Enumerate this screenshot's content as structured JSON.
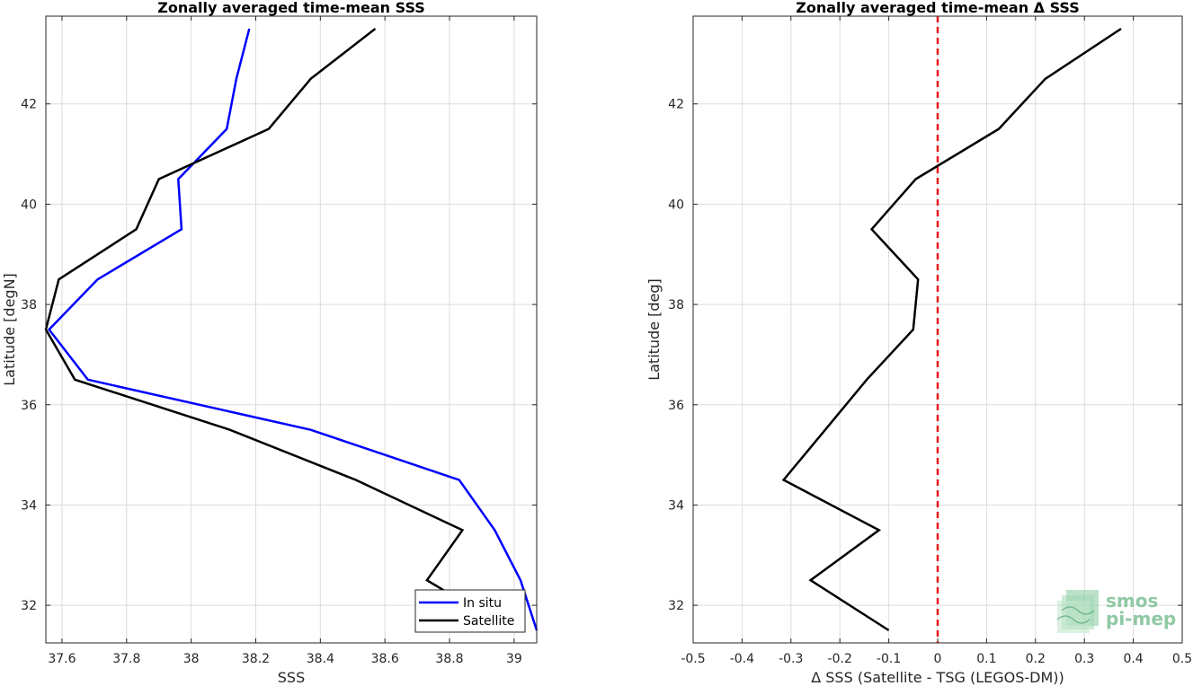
{
  "chart_data": [
    {
      "type": "line",
      "title": "Zonally averaged time-mean SSS",
      "xlabel": "SSS",
      "ylabel": "Latitude [degN]",
      "xlim": [
        37.55,
        39.07
      ],
      "ylim": [
        31.25,
        43.75
      ],
      "xticks": [
        37.6,
        37.8,
        38,
        38.2,
        38.4,
        38.6,
        38.8,
        39
      ],
      "xtick_labels": [
        "37.6",
        "37.8",
        "38",
        "38.2",
        "38.4",
        "38.6",
        "38.8",
        "39"
      ],
      "yticks": [
        32,
        34,
        36,
        38,
        40,
        42
      ],
      "ytick_labels": [
        "32",
        "34",
        "36",
        "38",
        "40",
        "42"
      ],
      "grid": true,
      "legend": "bottom-right",
      "series": [
        {
          "name": "In situ",
          "color": "#0000ff",
          "points": [
            {
              "x": 39.07,
              "y": 31.5
            },
            {
              "x": 39.02,
              "y": 32.5
            },
            {
              "x": 38.94,
              "y": 33.5
            },
            {
              "x": 38.83,
              "y": 34.5
            },
            {
              "x": 38.37,
              "y": 35.5
            },
            {
              "x": 37.68,
              "y": 36.5
            },
            {
              "x": 37.56,
              "y": 37.5
            },
            {
              "x": 37.71,
              "y": 38.5
            },
            {
              "x": 37.97,
              "y": 39.5
            },
            {
              "x": 37.96,
              "y": 40.5
            },
            {
              "x": 38.11,
              "y": 41.5
            },
            {
              "x": 38.14,
              "y": 42.5
            },
            {
              "x": 38.18,
              "y": 43.5
            }
          ]
        },
        {
          "name": "Satellite",
          "color": "#000000",
          "points": [
            {
              "x": 38.99,
              "y": 31.5
            },
            {
              "x": 38.73,
              "y": 32.5
            },
            {
              "x": 38.84,
              "y": 33.5
            },
            {
              "x": 38.51,
              "y": 34.5
            },
            {
              "x": 38.12,
              "y": 35.5
            },
            {
              "x": 37.64,
              "y": 36.5
            },
            {
              "x": 37.55,
              "y": 37.5
            },
            {
              "x": 37.59,
              "y": 38.5
            },
            {
              "x": 37.83,
              "y": 39.5
            },
            {
              "x": 37.9,
              "y": 40.5
            },
            {
              "x": 38.24,
              "y": 41.5
            },
            {
              "x": 38.37,
              "y": 42.5
            },
            {
              "x": 38.57,
              "y": 43.5
            }
          ]
        }
      ]
    },
    {
      "type": "line",
      "title": "Zonally averaged time-mean Δ SSS",
      "xlabel": "Δ SSS (Satellite - TSG (LEGOS-DM))",
      "ylabel": "Latitude [deg]",
      "xlim": [
        -0.5,
        0.5
      ],
      "ylim": [
        31.25,
        43.75
      ],
      "xticks": [
        -0.5,
        -0.4,
        -0.3,
        -0.2,
        -0.1,
        0,
        0.1,
        0.2,
        0.3,
        0.4,
        0.5
      ],
      "xtick_labels": [
        "-0.5",
        "-0.4",
        "-0.3",
        "-0.2",
        "-0.1",
        "0",
        "0.1",
        "0.2",
        "0.3",
        "0.4",
        "0.5"
      ],
      "yticks": [
        32,
        34,
        36,
        38,
        40,
        42
      ],
      "ytick_labels": [
        "32",
        "34",
        "36",
        "38",
        "40",
        "42"
      ],
      "grid": true,
      "reference_line": {
        "x": 0,
        "color": "#e8191f",
        "style": "dashed"
      },
      "series": [
        {
          "color": "#000000",
          "points": [
            {
              "x": -0.1,
              "y": 31.5
            },
            {
              "x": -0.26,
              "y": 32.5
            },
            {
              "x": -0.12,
              "y": 33.5
            },
            {
              "x": -0.315,
              "y": 34.5
            },
            {
              "x": -0.23,
              "y": 35.5
            },
            {
              "x": -0.145,
              "y": 36.5
            },
            {
              "x": -0.05,
              "y": 37.5
            },
            {
              "x": -0.04,
              "y": 38.5
            },
            {
              "x": -0.135,
              "y": 39.5
            },
            {
              "x": -0.045,
              "y": 40.5
            },
            {
              "x": 0.125,
              "y": 41.5
            },
            {
              "x": 0.22,
              "y": 42.5
            },
            {
              "x": 0.375,
              "y": 43.5
            }
          ]
        }
      ]
    }
  ],
  "logo": {
    "line1": "smos",
    "line2": "pi-mep",
    "color": "#8fc9a4"
  }
}
